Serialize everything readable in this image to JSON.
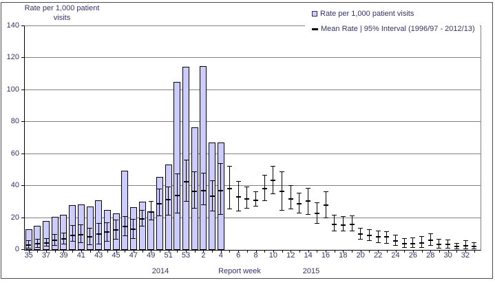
{
  "colors": {
    "bar_fill": "#CCCCFF",
    "bar_border": "#000000",
    "gridline": "#808080",
    "axis": "#000000",
    "text": "#333366",
    "error_bar": "#000000",
    "background": "#ffffff"
  },
  "figure": {
    "y_axis": {
      "title_line1": "Rate per 1,000 patient",
      "title_line2": "visits"
    },
    "x_axis": {
      "title": "Report week",
      "year_left": "2014",
      "year_right": "2015"
    }
  },
  "legend": {
    "items": [
      {
        "marker": "bar-square-icon",
        "label": "Rate per 1,000 patient visits"
      },
      {
        "marker": "mean-dash-icon",
        "label": "Mean Rate | 95% Interval (1996/97 - 2012/13)"
      }
    ]
  },
  "chart_data": {
    "type": "bar",
    "title": "",
    "xlabel": "Report week",
    "ylabel": "Rate per 1,000 patient visits",
    "ylim": [
      0,
      140
    ],
    "y_ticks": [
      0,
      20,
      40,
      60,
      80,
      100,
      120,
      140
    ],
    "grid": "horizontal",
    "legend_position": "top-right",
    "x_tick_label_step": 2,
    "year_groups": [
      {
        "label": "2014",
        "weeks": "35-53"
      },
      {
        "label": "2015",
        "weeks": "1-33"
      }
    ],
    "categories": [
      "35",
      "36",
      "37",
      "38",
      "39",
      "40",
      "41",
      "42",
      "43",
      "44",
      "45",
      "46",
      "47",
      "48",
      "49",
      "50",
      "51",
      "52",
      "53",
      "1",
      "2",
      "3",
      "4",
      "5",
      "6",
      "7",
      "8",
      "9",
      "10",
      "11",
      "12",
      "13",
      "14",
      "15",
      "16",
      "17",
      "18",
      "19",
      "20",
      "21",
      "22",
      "23",
      "24",
      "25",
      "26",
      "27",
      "28",
      "29",
      "30",
      "31",
      "32",
      "33"
    ],
    "series": [
      {
        "name": "Rate per 1,000 patient visits",
        "type": "bar",
        "values": [
          13,
          15,
          18,
          20.5,
          22,
          28,
          28.5,
          27,
          31,
          25,
          23,
          49.5,
          26.5,
          30,
          24,
          45.5,
          53.5,
          105,
          114.5,
          76.5,
          115,
          67,
          67,
          null,
          null,
          null,
          null,
          null,
          null,
          null,
          null,
          null,
          null,
          null,
          null,
          null,
          null,
          null,
          null,
          null,
          null,
          null,
          null,
          null,
          null,
          null,
          null,
          null,
          null,
          null,
          null,
          null
        ]
      },
      {
        "name": "Mean Rate",
        "type": "errorbar-mean",
        "values": [
          3,
          3.9,
          4.3,
          6,
          7,
          9,
          9.5,
          8,
          10,
          11,
          12.5,
          14.5,
          13,
          19.5,
          23.5,
          29,
          31.5,
          34,
          42.5,
          36.5,
          37,
          33.5,
          37,
          38.5,
          33,
          32,
          31,
          38.5,
          43.5,
          36.5,
          32,
          29,
          30.5,
          23,
          28,
          16,
          15.5,
          16,
          10,
          9,
          8,
          8,
          5.5,
          4,
          4,
          4.5,
          6,
          3.5,
          3.5,
          2,
          2.5,
          2
        ]
      },
      {
        "name": "95% Interval lower",
        "type": "errorbar-low",
        "values": [
          1,
          1.5,
          2,
          2.5,
          3.5,
          5,
          4.5,
          3,
          3.5,
          5,
          6.5,
          8.5,
          7,
          14.5,
          18.5,
          21,
          21.5,
          23,
          30,
          26,
          28,
          24,
          22,
          25.5,
          24,
          26,
          27,
          30.5,
          35,
          24.5,
          25.5,
          23,
          22,
          16.5,
          20,
          11.5,
          11.5,
          11.5,
          6.5,
          5.5,
          4.5,
          4,
          2.5,
          1.5,
          1.5,
          1.5,
          2.5,
          1,
          1,
          0.5,
          0.5,
          0.5
        ]
      },
      {
        "name": "95% Interval upper",
        "type": "errorbar-high",
        "values": [
          5.5,
          6.5,
          7,
          9.5,
          10.5,
          15,
          15.5,
          13.5,
          16.5,
          17,
          18.5,
          20.5,
          19,
          24.5,
          30,
          38,
          39,
          47.5,
          56,
          48.5,
          48,
          43,
          54,
          52,
          42.5,
          39,
          36,
          46.5,
          52,
          48.5,
          40,
          35.5,
          38.5,
          29.5,
          36,
          21.5,
          20.5,
          21,
          13.5,
          12.5,
          11.5,
          11,
          9,
          7,
          7.5,
          8,
          10,
          6.5,
          6,
          4,
          5.5,
          4.5
        ]
      }
    ]
  }
}
